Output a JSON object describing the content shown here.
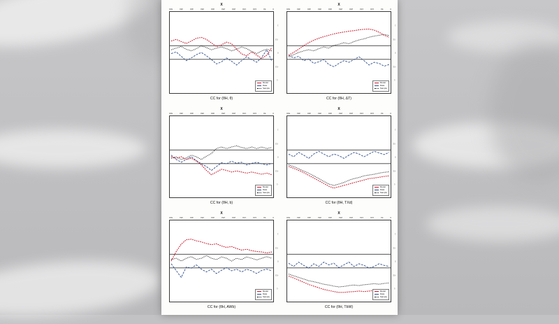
{
  "colors": {
    "red_series": "#c81528",
    "blue_series": "#31508e",
    "black_series": "#161616",
    "band_line": "#3a3a3a",
    "page_bg": "#fdfdfc",
    "backdrop": "#c0c0c2"
  },
  "legend": {
    "items": [
      {
        "label": "Model",
        "color": "#c81528"
      },
      {
        "label": "Data",
        "color": "#31508e"
      },
      {
        "label": "Sample",
        "color": "#161616"
      }
    ]
  },
  "chart_data": [
    {
      "type": "line",
      "title": "X",
      "caption": "CC for (θH, θ)",
      "x": [
        0,
        25,
        50,
        75,
        100,
        125,
        150,
        175,
        200,
        225,
        250,
        275,
        300,
        325,
        350,
        375,
        400,
        425,
        450,
        475,
        500
      ],
      "xticks": [
        0,
        50,
        100,
        150,
        200,
        250,
        300,
        350,
        400,
        450,
        500
      ],
      "yticks": [
        -1,
        -0.5,
        0,
        0.5,
        1
      ],
      "ylim": [
        -1.4,
        1.4
      ],
      "band": [
        -0.25,
        0.25
      ],
      "series": [
        {
          "name": "red",
          "label": "Model",
          "values": [
            0.42,
            0.48,
            0.4,
            0.33,
            0.42,
            0.52,
            0.55,
            0.48,
            0.35,
            0.22,
            0.28,
            0.38,
            0.32,
            0.12,
            -0.05,
            -0.12,
            0.02,
            -0.1,
            -0.22,
            -0.1,
            0.18
          ]
        },
        {
          "name": "blue",
          "label": "Data",
          "values": [
            -0.04,
            0.02,
            -0.14,
            -0.3,
            -0.2,
            -0.08,
            0.0,
            -0.12,
            -0.26,
            -0.42,
            -0.34,
            -0.2,
            -0.32,
            -0.46,
            -0.3,
            -0.16,
            -0.26,
            -0.36,
            -0.18,
            0.1,
            -0.32
          ]
        },
        {
          "name": "black",
          "label": "Sample",
          "values": [
            0.1,
            0.16,
            0.22,
            0.12,
            0.06,
            0.14,
            0.24,
            0.18,
            0.1,
            0.16,
            0.2,
            0.14,
            0.06,
            0.12,
            0.2,
            0.14,
            0.04,
            -0.04,
            0.06,
            0.12,
            0.06
          ]
        }
      ]
    },
    {
      "type": "line",
      "title": "X",
      "caption": "CC for (θH, ΔT)",
      "x": [
        0,
        25,
        50,
        75,
        100,
        125,
        150,
        175,
        200,
        225,
        250,
        275,
        300,
        325,
        350,
        375,
        400,
        425,
        450,
        475,
        500
      ],
      "xticks": [
        0,
        50,
        100,
        150,
        200,
        250,
        300,
        350,
        400,
        450,
        500
      ],
      "yticks": [
        -1,
        -0.5,
        0,
        0.5,
        1
      ],
      "ylim": [
        -1.4,
        1.4
      ],
      "band": [
        -0.25,
        0.25
      ],
      "series": [
        {
          "name": "red",
          "label": "Model",
          "values": [
            -0.1,
            0.0,
            0.12,
            0.25,
            0.36,
            0.45,
            0.52,
            0.58,
            0.63,
            0.68,
            0.72,
            0.75,
            0.78,
            0.8,
            0.83,
            0.85,
            0.86,
            0.82,
            0.74,
            0.63,
            0.56
          ]
        },
        {
          "name": "blue",
          "label": "Data",
          "values": [
            -0.1,
            -0.2,
            -0.14,
            -0.3,
            -0.24,
            -0.4,
            -0.34,
            -0.26,
            -0.44,
            -0.52,
            -0.4,
            -0.3,
            -0.36,
            -0.26,
            -0.16,
            -0.3,
            -0.46,
            -0.36,
            -0.4,
            -0.5,
            -0.44
          ]
        },
        {
          "name": "black",
          "label": "Sample",
          "values": [
            -0.16,
            -0.08,
            0.0,
            0.06,
            0.1,
            0.06,
            0.14,
            0.2,
            0.16,
            0.26,
            0.3,
            0.36,
            0.32,
            0.4,
            0.46,
            0.5,
            0.56,
            0.6,
            0.63,
            0.66,
            0.62
          ]
        }
      ]
    },
    {
      "type": "line",
      "title": "X",
      "caption": "CC for (θH, b)",
      "x": [
        0,
        25,
        50,
        75,
        100,
        125,
        150,
        175,
        200,
        225,
        250,
        275,
        300,
        325,
        350,
        375,
        400,
        425,
        450,
        475,
        500
      ],
      "xticks": [
        0,
        50,
        100,
        150,
        200,
        250,
        300,
        350,
        400,
        450,
        500
      ],
      "yticks": [
        -1,
        -0.5,
        0,
        0.5,
        1
      ],
      "ylim": [
        -1.4,
        1.4
      ],
      "band": [
        -0.25,
        0.25
      ],
      "series": [
        {
          "name": "red",
          "label": "Model",
          "values": [
            0.0,
            -0.06,
            0.0,
            -0.1,
            -0.05,
            -0.16,
            -0.3,
            -0.5,
            -0.66,
            -0.56,
            -0.46,
            -0.5,
            -0.56,
            -0.52,
            -0.56,
            -0.6,
            -0.56,
            -0.6,
            -0.64,
            -0.6,
            -0.66
          ]
        },
        {
          "name": "blue",
          "label": "Data",
          "values": [
            0.06,
            -0.1,
            -0.2,
            -0.1,
            0.0,
            -0.14,
            -0.26,
            -0.36,
            -0.5,
            -0.36,
            -0.22,
            -0.26,
            -0.16,
            -0.24,
            -0.2,
            -0.3,
            -0.24,
            -0.2,
            -0.26,
            -0.3,
            -0.24
          ]
        },
        {
          "name": "black",
          "label": "Sample",
          "values": [
            -0.06,
            0.0,
            -0.1,
            -0.04,
            0.06,
            0.0,
            -0.1,
            0.02,
            0.12,
            0.3,
            0.36,
            0.3,
            0.36,
            0.4,
            0.34,
            0.3,
            0.36,
            0.3,
            0.36,
            0.3,
            0.34
          ]
        }
      ]
    },
    {
      "type": "line",
      "title": "X",
      "caption": "CC for (θH, TXd)",
      "x": [
        0,
        25,
        50,
        75,
        100,
        125,
        150,
        175,
        200,
        225,
        250,
        275,
        300,
        325,
        350,
        375,
        400,
        425,
        450,
        475,
        500
      ],
      "xticks": [
        0,
        50,
        100,
        150,
        200,
        250,
        300,
        350,
        400,
        450,
        500
      ],
      "yticks": [
        -1,
        -0.5,
        0,
        0.5,
        1
      ],
      "ylim": [
        -1.4,
        1.4
      ],
      "band": [
        -0.25,
        0.25
      ],
      "series": [
        {
          "name": "red",
          "label": "Model",
          "values": [
            -0.36,
            -0.42,
            -0.5,
            -0.58,
            -0.68,
            -0.78,
            -0.88,
            -0.98,
            -1.08,
            -1.15,
            -1.1,
            -1.05,
            -1.0,
            -0.95,
            -0.9,
            -0.85,
            -0.8,
            -0.78,
            -0.75,
            -0.72,
            -0.7
          ]
        },
        {
          "name": "blue",
          "label": "Data",
          "values": [
            0.1,
            0.0,
            0.16,
            0.06,
            -0.06,
            0.1,
            0.2,
            0.1,
            0.0,
            0.1,
            0.04,
            -0.06,
            0.06,
            0.16,
            0.1,
            0.0,
            0.1,
            0.2,
            0.14,
            0.08,
            0.16
          ]
        },
        {
          "name": "black",
          "label": "Sample",
          "values": [
            -0.3,
            -0.36,
            -0.44,
            -0.52,
            -0.6,
            -0.7,
            -0.8,
            -0.9,
            -1.0,
            -1.05,
            -1.0,
            -0.94,
            -0.86,
            -0.8,
            -0.76,
            -0.7,
            -0.67,
            -0.64,
            -0.6,
            -0.57,
            -0.55
          ]
        }
      ]
    },
    {
      "type": "line",
      "title": "X",
      "caption": "CC for (θH, AWb)",
      "x": [
        0,
        25,
        50,
        75,
        100,
        125,
        150,
        175,
        200,
        225,
        250,
        275,
        300,
        325,
        350,
        375,
        400,
        425,
        450,
        475,
        500
      ],
      "xticks": [
        0,
        50,
        100,
        150,
        200,
        250,
        300,
        350,
        400,
        450,
        500
      ],
      "yticks": [
        -1,
        -0.5,
        0,
        0.5,
        1
      ],
      "ylim": [
        -1.4,
        1.4
      ],
      "band": [
        -0.25,
        0.25
      ],
      "series": [
        {
          "name": "red",
          "label": "Model",
          "values": [
            0.0,
            0.35,
            0.62,
            0.78,
            0.8,
            0.74,
            0.7,
            0.64,
            0.6,
            0.63,
            0.55,
            0.5,
            0.53,
            0.46,
            0.4,
            0.43,
            0.38,
            0.35,
            0.33,
            0.3,
            0.33
          ]
        },
        {
          "name": "blue",
          "label": "Data",
          "values": [
            -0.1,
            -0.35,
            -0.6,
            -0.22,
            -0.26,
            -0.14,
            -0.3,
            -0.4,
            -0.3,
            -0.46,
            -0.34,
            -0.24,
            -0.36,
            -0.3,
            -0.4,
            -0.3,
            -0.36,
            -0.46,
            -0.34,
            -0.3,
            -0.36
          ]
        },
        {
          "name": "black",
          "label": "Sample",
          "values": [
            0.06,
            0.1,
            0.0,
            0.1,
            0.16,
            0.06,
            0.1,
            0.2,
            0.1,
            0.05,
            0.15,
            0.1,
            0.0,
            0.1,
            0.05,
            0.15,
            0.1,
            0.04,
            0.1,
            0.16,
            0.1
          ]
        }
      ]
    },
    {
      "type": "line",
      "title": "X",
      "caption": "CC for (θH, TbW)",
      "x": [
        0,
        25,
        50,
        75,
        100,
        125,
        150,
        175,
        200,
        225,
        250,
        275,
        300,
        325,
        350,
        375,
        400,
        425,
        450,
        475,
        500
      ],
      "xticks": [
        0,
        50,
        100,
        150,
        200,
        250,
        300,
        350,
        400,
        450,
        500
      ],
      "yticks": [
        -1,
        -0.5,
        0,
        0.5,
        1
      ],
      "ylim": [
        -1.4,
        1.4
      ],
      "band": [
        -0.25,
        0.25
      ],
      "series": [
        {
          "name": "red",
          "label": "Model",
          "values": [
            -0.55,
            -0.62,
            -0.7,
            -0.78,
            -0.86,
            -0.92,
            -0.98,
            -1.04,
            -1.08,
            -1.12,
            -1.15,
            -1.15,
            -1.13,
            -1.12,
            -1.1,
            -1.12,
            -1.1,
            -1.08,
            -1.1,
            -1.08,
            -1.05
          ]
        },
        {
          "name": "blue",
          "label": "Data",
          "values": [
            -0.08,
            -0.2,
            -0.04,
            -0.16,
            -0.26,
            -0.1,
            -0.2,
            -0.04,
            -0.14,
            -0.08,
            -0.24,
            -0.14,
            -0.04,
            -0.2,
            -0.1,
            -0.16,
            -0.26,
            -0.2,
            -0.1,
            -0.16,
            -0.2
          ]
        },
        {
          "name": "black",
          "label": "Sample",
          "values": [
            -0.48,
            -0.54,
            -0.6,
            -0.66,
            -0.72,
            -0.76,
            -0.8,
            -0.85,
            -0.88,
            -0.92,
            -0.95,
            -0.93,
            -0.9,
            -0.88,
            -0.9,
            -0.87,
            -0.85,
            -0.83,
            -0.85,
            -0.82,
            -0.8
          ]
        }
      ]
    }
  ]
}
